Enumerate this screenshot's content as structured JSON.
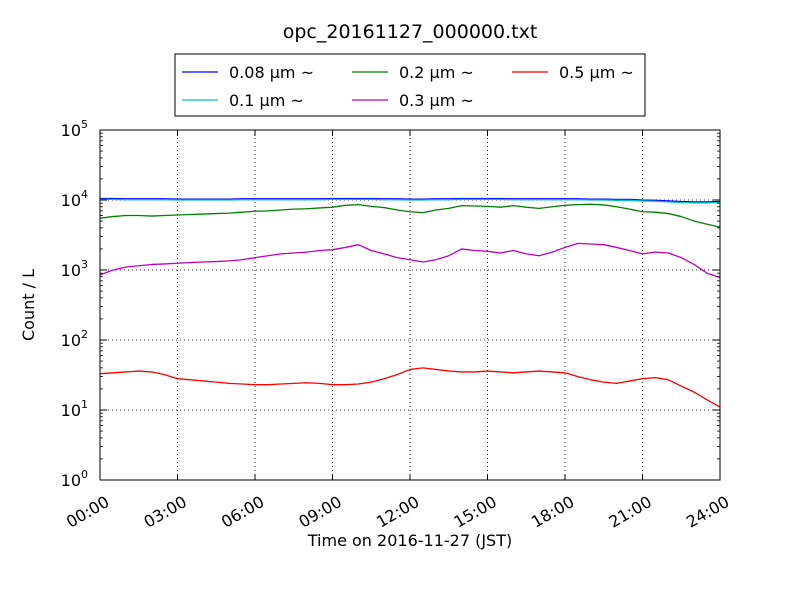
{
  "chart_data": {
    "type": "line",
    "title": "opc_20161127_000000.txt",
    "xlabel": "Time on 2016-11-27 (JST)",
    "ylabel": "Count / L",
    "x_unit": "hours",
    "xlim": [
      0,
      24
    ],
    "ylim": [
      1,
      100000
    ],
    "yscale": "log",
    "grid": true,
    "legend_position": "top-center, above plot",
    "x_ticks": [
      0,
      3,
      6,
      9,
      12,
      15,
      18,
      21,
      24
    ],
    "x_tick_labels": [
      "00:00",
      "03:00",
      "06:00",
      "09:00",
      "12:00",
      "15:00",
      "18:00",
      "21:00",
      "24:00"
    ],
    "y_ticks": [
      1,
      10,
      100,
      1000,
      10000,
      100000
    ],
    "y_tick_base": "10",
    "y_tick_exponents": [
      "0",
      "1",
      "2",
      "3",
      "4",
      "5"
    ],
    "x": [
      0,
      0.5,
      1,
      1.5,
      2,
      2.5,
      3,
      3.5,
      4,
      4.5,
      5,
      5.5,
      6,
      6.5,
      7,
      7.5,
      8,
      8.5,
      9,
      9.5,
      10,
      10.5,
      11,
      11.5,
      12,
      12.5,
      13,
      13.5,
      14,
      14.5,
      15,
      15.5,
      16,
      16.5,
      17,
      17.5,
      18,
      18.5,
      19,
      19.5,
      20,
      20.5,
      21,
      21.5,
      22,
      22.5,
      23,
      23.5,
      24
    ],
    "series": [
      {
        "name": "0.08 μm ~",
        "color": "#0000ff",
        "values": [
          10500,
          10500,
          10400,
          10400,
          10400,
          10400,
          10300,
          10300,
          10300,
          10300,
          10300,
          10400,
          10400,
          10400,
          10400,
          10400,
          10400,
          10400,
          10500,
          10500,
          10500,
          10500,
          10400,
          10400,
          10300,
          10300,
          10400,
          10400,
          10500,
          10500,
          10500,
          10500,
          10400,
          10400,
          10400,
          10400,
          10400,
          10400,
          10300,
          10300,
          10200,
          10200,
          10000,
          9900,
          9700,
          9500,
          9400,
          9400,
          9500
        ]
      },
      {
        "name": "0.1 μm ~",
        "color": "#00bfbf",
        "values": [
          10200,
          10200,
          10100,
          10100,
          10100,
          10100,
          10000,
          10000,
          10000,
          10000,
          10000,
          10100,
          10100,
          10100,
          10100,
          10100,
          10100,
          10100,
          10200,
          10200,
          10200,
          10200,
          10100,
          10100,
          10000,
          10000,
          10100,
          10100,
          10200,
          10200,
          10200,
          10200,
          10100,
          10100,
          10100,
          10100,
          10100,
          10100,
          10000,
          10000,
          9900,
          9900,
          9700,
          9600,
          9400,
          9200,
          9100,
          9100,
          9200
        ]
      },
      {
        "name": "0.2 μm ~",
        "color": "#008000",
        "values": [
          5500,
          5800,
          6000,
          6000,
          5900,
          6000,
          6100,
          6200,
          6300,
          6400,
          6500,
          6700,
          6900,
          7000,
          7200,
          7400,
          7500,
          7700,
          7900,
          8400,
          8600,
          8100,
          7800,
          7200,
          6800,
          6600,
          7200,
          7600,
          8300,
          8200,
          8100,
          7900,
          8300,
          7900,
          7600,
          8000,
          8400,
          8600,
          8700,
          8500,
          8000,
          7400,
          6800,
          6700,
          6400,
          5800,
          5000,
          4500,
          4100
        ]
      },
      {
        "name": "0.3 μm ~",
        "color": "#bf00bf",
        "values": [
          850,
          1000,
          1100,
          1150,
          1200,
          1220,
          1250,
          1280,
          1300,
          1320,
          1350,
          1400,
          1500,
          1600,
          1700,
          1750,
          1800,
          1900,
          1950,
          2100,
          2300,
          1900,
          1700,
          1500,
          1400,
          1300,
          1400,
          1600,
          2000,
          1900,
          1850,
          1750,
          1900,
          1700,
          1600,
          1800,
          2100,
          2400,
          2350,
          2300,
          2100,
          1900,
          1700,
          1800,
          1750,
          1500,
          1200,
          900,
          780
        ]
      },
      {
        "name": "0.5 μm ~",
        "color": "#ff0000",
        "values": [
          33,
          34,
          35,
          36,
          35,
          32,
          28,
          27,
          26,
          25,
          24,
          23.5,
          23,
          23,
          23.5,
          24,
          24.5,
          24,
          23,
          23,
          23.5,
          25,
          28,
          32,
          38,
          40,
          38,
          36,
          35,
          35,
          36,
          35,
          34,
          35,
          36,
          35,
          34,
          30,
          27,
          25,
          24,
          26,
          28,
          29,
          27,
          22,
          18,
          14,
          11
        ]
      }
    ]
  }
}
